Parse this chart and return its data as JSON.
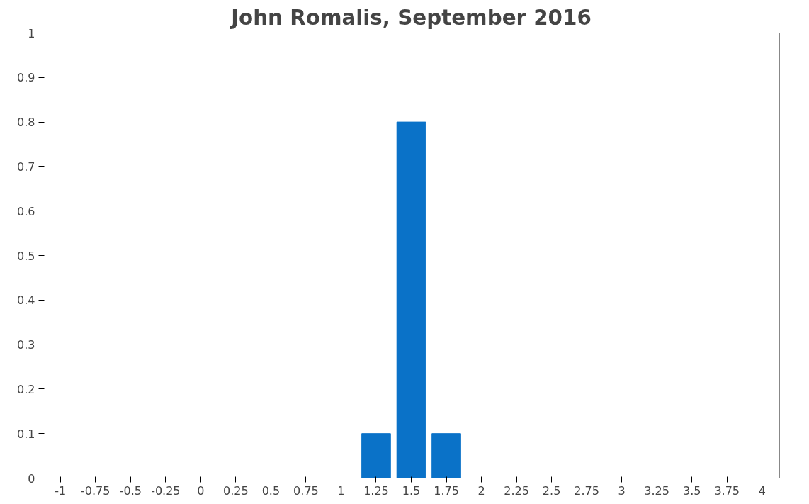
{
  "chart_data": {
    "type": "bar",
    "title": "John Romalis, September 2016",
    "categories": [
      "-1",
      "-0.75",
      "-0.5",
      "-0.25",
      "0",
      "0.25",
      "0.5",
      "0.75",
      "1",
      "1.25",
      "1.5",
      "1.75",
      "2",
      "2.25",
      "2.5",
      "2.75",
      "3",
      "3.25",
      "3.5",
      "3.75",
      "4"
    ],
    "values": [
      0,
      0,
      0,
      0,
      0,
      0,
      0,
      0,
      0,
      0.1,
      0.8,
      0.1,
      0,
      0,
      0,
      0,
      0,
      0,
      0,
      0,
      0
    ],
    "color": "#0a72c8",
    "ylim": [
      0,
      1
    ],
    "yticks": [
      0,
      0.1,
      0.2,
      0.3,
      0.4,
      0.5,
      0.6,
      0.7,
      0.8,
      0.9,
      1
    ],
    "grid": false
  }
}
